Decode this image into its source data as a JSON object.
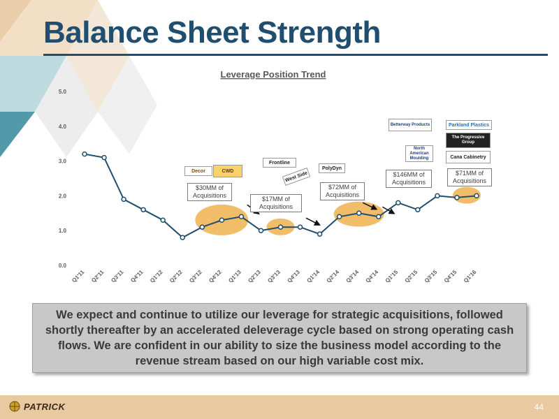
{
  "header": {
    "title": "Balance Sheet Strength"
  },
  "chart_data": {
    "type": "line",
    "title": "Leverage Position Trend",
    "categories": [
      "Q1'11",
      "Q2'11",
      "Q3'11",
      "Q4'11",
      "Q1'12",
      "Q2'12",
      "Q3'12",
      "Q4'12",
      "Q1'13",
      "Q2'13",
      "Q3'13",
      "Q4'13",
      "Q1'14",
      "Q2'14",
      "Q3'14",
      "Q4'14",
      "Q1'15",
      "Q2'15",
      "Q3'15",
      "Q4'15",
      "Q1'16"
    ],
    "values": [
      3.2,
      3.1,
      1.9,
      1.6,
      1.3,
      0.8,
      1.1,
      1.3,
      1.4,
      1.0,
      1.1,
      1.1,
      0.9,
      1.4,
      1.5,
      1.4,
      1.8,
      1.6,
      2.0,
      1.95,
      2.0
    ],
    "ylim": [
      0,
      5
    ],
    "yticks": [
      "0.0",
      "1.0",
      "2.0",
      "3.0",
      "4.0",
      "5.0"
    ],
    "grid": false,
    "line_color": "#1f4e6e",
    "highlight_color": "#f0b24f",
    "annotations": [
      {
        "text": "$30MM of Acquisitions"
      },
      {
        "text": "$17MM of Acquisitions"
      },
      {
        "text": "$72MM of Acquisitions"
      },
      {
        "text": "$146MM of Acquisitions"
      },
      {
        "text": "$71MM of Acquisitions"
      }
    ],
    "acquired_logos": [
      "Decor",
      "CWD",
      "Frontline",
      "West Side",
      "PolyDyn",
      "Betterway Products",
      "North American Moulding",
      "Parkland Plastics",
      "The Progressive Group",
      "Cana Cabinetry"
    ]
  },
  "callout": "We expect and continue to utilize our leverage for strategic acquisitions, followed shortly thereafter by an accelerated deleverage cycle based on strong operating cash flows.  We are confident in our ability to size the business model according to the revenue stream based on our high variable cost mix.",
  "footer": {
    "logo_text": "PATRICK",
    "page_number": "44"
  }
}
